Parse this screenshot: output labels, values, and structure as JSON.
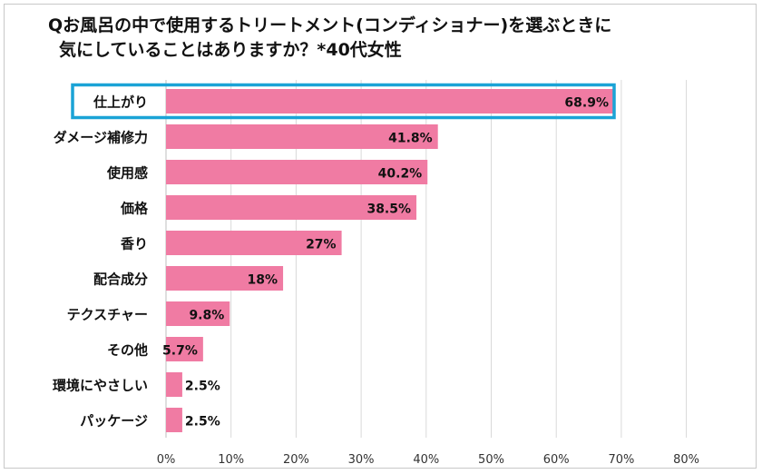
{
  "title_line1": "Qお風呂の中で使用するトリートメント(コンディショナー)を選ぶときに",
  "title_line2": "気にしていることはありますか？*40代女性",
  "chart_data": {
    "type": "bar",
    "orientation": "horizontal",
    "categories": [
      "仕上がり",
      "ダメージ補修力",
      "使用感",
      "価格",
      "香り",
      "配合成分",
      "テクスチャー",
      "その他",
      "環境にやさしい",
      "パッケージ"
    ],
    "values": [
      68.9,
      41.8,
      40.2,
      38.5,
      27,
      18,
      9.8,
      5.7,
      2.5,
      2.5
    ],
    "value_labels": [
      "68.9%",
      "41.8%",
      "40.2%",
      "38.5%",
      "27%",
      "18%",
      "9.8%",
      "5.7%",
      "2.5%",
      "2.5%"
    ],
    "x_ticks": [
      "0%",
      "10%",
      "20%",
      "30%",
      "40%",
      "50%",
      "60%",
      "70%",
      "80%"
    ],
    "xlim": [
      0,
      80
    ],
    "grid": true,
    "highlighted_category": "仕上がり",
    "bar_color": "#f07ba3",
    "highlight_color": "#1aa3d6"
  }
}
